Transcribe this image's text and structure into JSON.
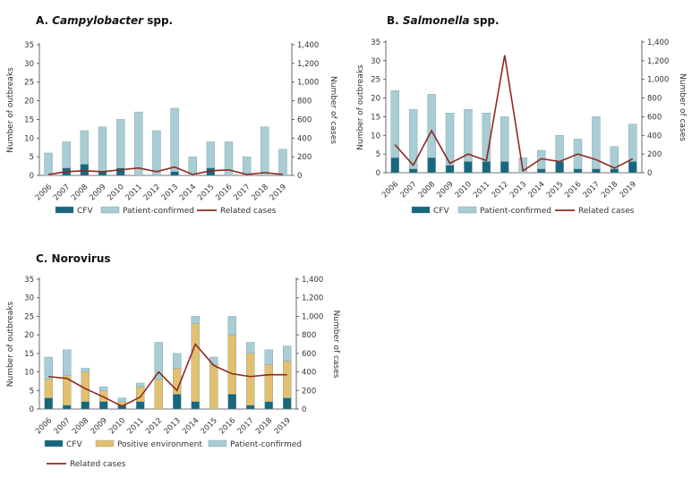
{
  "colors": {
    "cfv": "#17677e",
    "patient_confirmed": "#a8cdd4",
    "positive_environment": "#e3c06f",
    "related_cases": "#8c2a22"
  },
  "chart_data": [
    {
      "type": "bar",
      "panel": "A.",
      "title_prefix": "A.",
      "title_italic": "Campylobacter",
      "title_suffix": "spp.",
      "ylabel_left": "Number of outbreaks",
      "ylabel_right": "Number of cases",
      "ylim": [
        0,
        35
      ],
      "y2lim": [
        0,
        1400
      ],
      "yticks": [
        "0",
        "5",
        "10",
        "15",
        "20",
        "25",
        "30",
        "35"
      ],
      "y2ticks": [
        "0",
        "200",
        "400",
        "600",
        "800",
        "1,000",
        "1,200",
        "1,400"
      ],
      "categories": [
        "2006",
        "2007",
        "2008",
        "2009",
        "2010",
        "2011",
        "2012",
        "2013",
        "2014",
        "2015",
        "2016",
        "2017",
        "2018",
        "2019"
      ],
      "series": [
        {
          "name": "CFV",
          "kind": "bar",
          "values": [
            0,
            2,
            3,
            1,
            2,
            0,
            0,
            1,
            0,
            2,
            0,
            0,
            0,
            0
          ]
        },
        {
          "name": "Patient-confirmed",
          "kind": "bar",
          "values": [
            6,
            7,
            9,
            12,
            13,
            17,
            12,
            17,
            5,
            7,
            9,
            5,
            13,
            7
          ]
        },
        {
          "name": "Related cases",
          "kind": "line",
          "axis": "right",
          "values": [
            10,
            40,
            50,
            40,
            60,
            80,
            40,
            90,
            10,
            50,
            60,
            10,
            30,
            10
          ]
        }
      ],
      "legend": [
        "CFV",
        "Patient-confirmed",
        "Related cases"
      ]
    },
    {
      "type": "bar",
      "panel": "B.",
      "title_prefix": "B.",
      "title_italic": "Salmonella",
      "title_suffix": "spp.",
      "ylabel_left": "Number of outbreaks",
      "ylabel_right": "Number of cases",
      "ylim": [
        0,
        35
      ],
      "y2lim": [
        0,
        1400
      ],
      "yticks": [
        "0",
        "5",
        "10",
        "15",
        "20",
        "25",
        "30",
        "35"
      ],
      "y2ticks": [
        "0",
        "200",
        "400",
        "600",
        "800",
        "1,000",
        "1,200",
        "1,400"
      ],
      "categories": [
        "2006",
        "2007",
        "2008",
        "2009",
        "2010",
        "2011",
        "2012",
        "2013",
        "2014",
        "2015",
        "2016",
        "2017",
        "2018",
        "2019"
      ],
      "series": [
        {
          "name": "CFV",
          "kind": "bar",
          "values": [
            4,
            1,
            4,
            2,
            3,
            3,
            3,
            0,
            1,
            3,
            1,
            1,
            1,
            3
          ]
        },
        {
          "name": "Patient-confirmed",
          "kind": "bar",
          "values": [
            18,
            16,
            17,
            14,
            14,
            13,
            12,
            4,
            5,
            7,
            8,
            14,
            6,
            10
          ]
        },
        {
          "name": "Related cases",
          "kind": "line",
          "axis": "right",
          "values": [
            300,
            80,
            450,
            100,
            200,
            130,
            1260,
            20,
            150,
            120,
            200,
            140,
            50,
            150
          ]
        }
      ],
      "legend": [
        "CFV",
        "Patient-confirmed",
        "Related cases"
      ]
    },
    {
      "type": "bar",
      "panel": "C.",
      "title_prefix": "C.",
      "title_italic": "",
      "title_suffix": "Norovirus",
      "ylabel_left": "Number of outbreaks",
      "ylabel_right": "Number of cases",
      "ylim": [
        0,
        35
      ],
      "y2lim": [
        0,
        1400
      ],
      "yticks": [
        "0",
        "5",
        "10",
        "15",
        "20",
        "25",
        "30",
        "35"
      ],
      "y2ticks": [
        "0",
        "200",
        "400",
        "600",
        "800",
        "1,000",
        "1,200",
        "1,400"
      ],
      "categories": [
        "2006",
        "2007",
        "2008",
        "2009",
        "2010",
        "2011",
        "2012",
        "2013",
        "2014",
        "2015",
        "2016",
        "2017",
        "2018",
        "2019"
      ],
      "series": [
        {
          "name": "CFV",
          "kind": "bar",
          "values": [
            3,
            1,
            2,
            2,
            1,
            2,
            0,
            4,
            2,
            0,
            4,
            1,
            2,
            3
          ]
        },
        {
          "name": "Positive environment",
          "kind": "bar",
          "values": [
            5,
            8,
            8,
            3,
            1,
            4,
            8,
            7,
            21,
            12,
            16,
            14,
            10,
            10
          ]
        },
        {
          "name": "Patient-confirmed",
          "kind": "bar",
          "values": [
            6,
            7,
            1,
            1,
            1,
            1,
            10,
            4,
            2,
            2,
            5,
            3,
            4,
            4
          ]
        },
        {
          "name": "Related cases",
          "kind": "line",
          "axis": "right",
          "values": [
            350,
            330,
            220,
            130,
            30,
            130,
            400,
            200,
            700,
            470,
            380,
            350,
            370,
            370
          ]
        }
      ],
      "legend": [
        "CFV",
        "Positive environment",
        "Patient-confirmed",
        "Related cases"
      ]
    }
  ]
}
